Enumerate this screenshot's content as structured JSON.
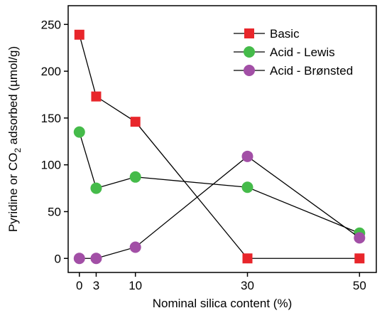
{
  "chart_data": {
    "type": "line",
    "xlabel": "Nominal silica content (%)",
    "ylabel": {
      "prefix": "Pyridine or CO",
      "subscript": "2",
      "suffix": " adsorbed (µmol/g)"
    },
    "xlim": [
      -2,
      53
    ],
    "ylim": [
      -15,
      270
    ],
    "x": [
      0,
      3,
      10,
      30,
      50
    ],
    "xticks": [
      0,
      3,
      10,
      30,
      50
    ],
    "yticks": [
      0,
      50,
      100,
      150,
      200,
      250
    ],
    "grid": false,
    "legend_position": "top-right",
    "series": [
      {
        "name": "Basic",
        "marker": "square",
        "color": "#e8262b",
        "values": [
          239,
          173,
          146,
          0,
          0
        ]
      },
      {
        "name": "Acid - Lewis",
        "marker": "circle",
        "color": "#45bb4a",
        "values": [
          135,
          75,
          87,
          76,
          27
        ]
      },
      {
        "name": "Acid - Brønsted",
        "marker": "circle",
        "color": "#a24fa6",
        "values": [
          0,
          0,
          12,
          109,
          22
        ]
      }
    ]
  }
}
